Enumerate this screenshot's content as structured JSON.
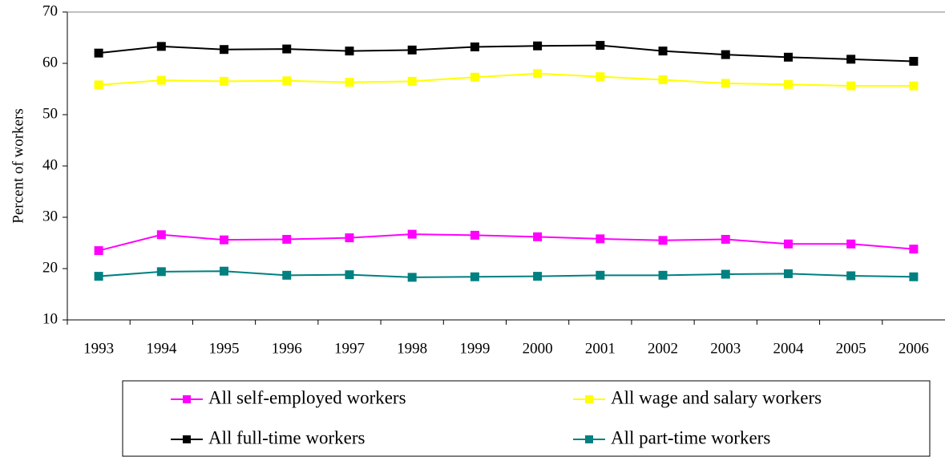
{
  "chart_data": {
    "type": "line",
    "y_label": "Percent of workers",
    "categories": [
      "1993",
      "1994",
      "1995",
      "1996",
      "1997",
      "1998",
      "1999",
      "2000",
      "2001",
      "2002",
      "2003",
      "2004",
      "2005",
      "2006"
    ],
    "series": [
      {
        "name": "All self-employed workers",
        "color": "#ff00ff",
        "values": [
          23.5,
          26.6,
          25.6,
          25.7,
          26.0,
          26.7,
          26.5,
          26.2,
          25.8,
          25.5,
          25.7,
          24.8,
          24.8,
          23.8
        ]
      },
      {
        "name": "All wage and salary workers",
        "color": "#ffff00",
        "values": [
          55.8,
          56.7,
          56.5,
          56.6,
          56.3,
          56.5,
          57.3,
          58.0,
          57.4,
          56.8,
          56.1,
          55.9,
          55.6,
          55.6
        ]
      },
      {
        "name": "All full-time workers",
        "color": "#000000",
        "values": [
          62.0,
          63.3,
          62.7,
          62.8,
          62.4,
          62.6,
          63.2,
          63.4,
          63.5,
          62.4,
          61.7,
          61.2,
          60.8,
          60.4
        ]
      },
      {
        "name": "All part-time workers",
        "color": "#008080",
        "values": [
          18.5,
          19.4,
          19.5,
          18.7,
          18.8,
          18.3,
          18.4,
          18.5,
          18.7,
          18.7,
          18.9,
          19.0,
          18.6,
          18.4
        ]
      }
    ],
    "ylim": [
      10,
      70
    ],
    "yticks": [
      10,
      20,
      30,
      40,
      50,
      60,
      70
    ],
    "grid": false
  }
}
